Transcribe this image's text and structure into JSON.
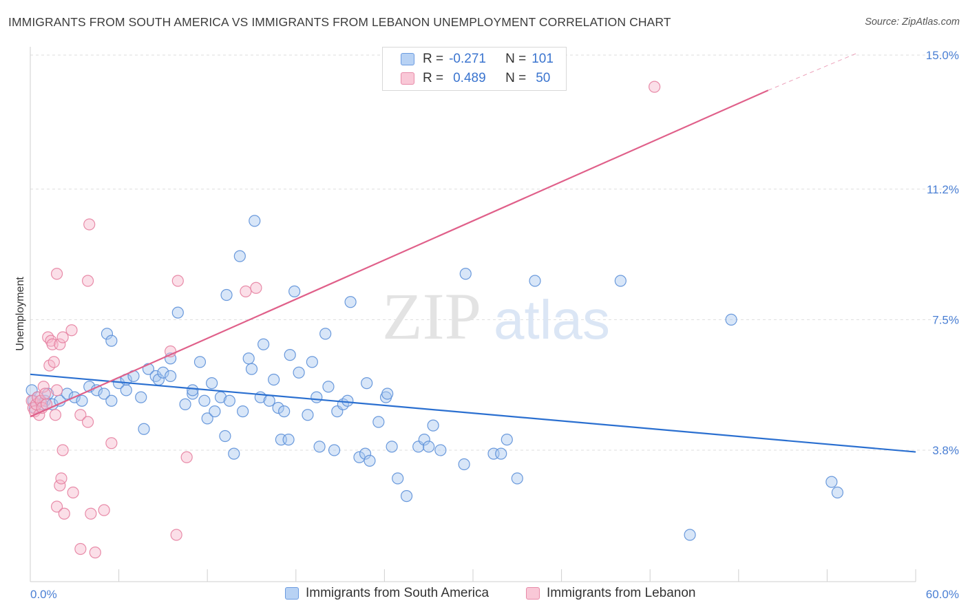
{
  "title": "IMMIGRANTS FROM SOUTH AMERICA VS IMMIGRANTS FROM LEBANON UNEMPLOYMENT CORRELATION CHART",
  "source": "Source: ZipAtlas.com",
  "watermark": {
    "zip": "ZIP",
    "atlas": "atlas"
  },
  "legend": {
    "rows": [
      {
        "r_label": "R =",
        "r_value": "-0.271",
        "n_label": "N =",
        "n_value": "101"
      },
      {
        "r_label": "R =",
        "r_value": "0.489",
        "n_label": "N =",
        "n_value": "50"
      }
    ]
  },
  "bottom_legend": {
    "south_america": "Immigrants from South America",
    "lebanon": "Immigrants from Lebanon"
  },
  "colors": {
    "south_america_fill": "#a8c8f0",
    "south_america_stroke": "#5b8fd8",
    "south_america_line": "#2a6fd0",
    "lebanon_fill": "#f6b8cb",
    "lebanon_stroke": "#e57fa0",
    "lebanon_line": "#e0608a",
    "tick_label": "#4a7fd4",
    "grid": "#dddddd"
  },
  "chart_data": {
    "type": "scatter",
    "title": "IMMIGRANTS FROM SOUTH AMERICA VS IMMIGRANTS FROM LEBANON UNEMPLOYMENT CORRELATION CHART",
    "xlabel": "",
    "ylabel": "Unemployment",
    "xlim": [
      0,
      60
    ],
    "ylim": [
      0,
      15.7
    ],
    "x_tick_labels": [
      "0.0%",
      "60.0%"
    ],
    "y_ticks": [
      3.8,
      7.5,
      11.2,
      15.0
    ],
    "y_tick_labels": [
      "3.8%",
      "7.5%",
      "11.2%",
      "15.0%"
    ],
    "grid": true,
    "series": [
      {
        "name": "Immigrants from South America",
        "trend": {
          "x0": 0,
          "y0": 5.95,
          "x1": 60,
          "y1": 3.75
        },
        "points": [
          [
            0.1,
            5.5
          ],
          [
            0.2,
            5.2
          ],
          [
            0.3,
            5.0
          ],
          [
            0.5,
            5.3
          ],
          [
            0.8,
            5.1
          ],
          [
            1.0,
            5.2
          ],
          [
            1.2,
            5.4
          ],
          [
            1.5,
            5.1
          ],
          [
            2.0,
            5.2
          ],
          [
            2.5,
            5.4
          ],
          [
            3.0,
            5.3
          ],
          [
            3.5,
            5.2
          ],
          [
            4.0,
            5.6
          ],
          [
            4.5,
            5.5
          ],
          [
            5.0,
            5.4
          ],
          [
            5.2,
            7.1
          ],
          [
            5.5,
            5.2
          ],
          [
            5.5,
            6.9
          ],
          [
            6.0,
            5.7
          ],
          [
            6.5,
            5.5
          ],
          [
            6.5,
            5.8
          ],
          [
            7.0,
            5.9
          ],
          [
            7.5,
            5.3
          ],
          [
            7.7,
            4.4
          ],
          [
            8.0,
            6.1
          ],
          [
            8.5,
            5.9
          ],
          [
            8.7,
            5.8
          ],
          [
            9.0,
            6.0
          ],
          [
            9.5,
            5.9
          ],
          [
            9.5,
            6.4
          ],
          [
            10.0,
            7.7
          ],
          [
            10.5,
            5.1
          ],
          [
            11.0,
            5.4
          ],
          [
            11.0,
            5.5
          ],
          [
            11.5,
            6.3
          ],
          [
            11.8,
            5.2
          ],
          [
            12.0,
            4.7
          ],
          [
            12.3,
            5.7
          ],
          [
            12.5,
            4.9
          ],
          [
            12.9,
            5.3
          ],
          [
            13.2,
            4.2
          ],
          [
            13.3,
            8.2
          ],
          [
            13.5,
            5.2
          ],
          [
            13.8,
            3.7
          ],
          [
            14.2,
            9.3
          ],
          [
            14.4,
            4.9
          ],
          [
            14.8,
            6.4
          ],
          [
            15.0,
            6.1
          ],
          [
            15.2,
            10.3
          ],
          [
            15.6,
            5.3
          ],
          [
            15.8,
            6.8
          ],
          [
            16.2,
            5.2
          ],
          [
            16.5,
            5.8
          ],
          [
            16.8,
            5.0
          ],
          [
            17.0,
            4.1
          ],
          [
            17.2,
            4.9
          ],
          [
            17.5,
            4.1
          ],
          [
            17.6,
            6.5
          ],
          [
            17.9,
            8.3
          ],
          [
            18.2,
            6.0
          ],
          [
            18.8,
            4.8
          ],
          [
            19.1,
            6.3
          ],
          [
            19.4,
            5.3
          ],
          [
            19.6,
            3.9
          ],
          [
            20.0,
            7.1
          ],
          [
            20.2,
            5.6
          ],
          [
            20.6,
            3.8
          ],
          [
            20.8,
            4.9
          ],
          [
            21.2,
            5.1
          ],
          [
            21.5,
            5.2
          ],
          [
            21.7,
            8.0
          ],
          [
            22.3,
            3.6
          ],
          [
            22.7,
            3.7
          ],
          [
            22.8,
            5.7
          ],
          [
            23.0,
            3.5
          ],
          [
            23.6,
            4.6
          ],
          [
            24.1,
            5.3
          ],
          [
            24.2,
            5.4
          ],
          [
            24.5,
            3.9
          ],
          [
            24.9,
            3.0
          ],
          [
            25.5,
            2.5
          ],
          [
            26.3,
            3.9
          ],
          [
            26.7,
            4.1
          ],
          [
            27.0,
            3.9
          ],
          [
            27.3,
            4.5
          ],
          [
            27.8,
            3.8
          ],
          [
            29.4,
            3.4
          ],
          [
            29.5,
            8.8
          ],
          [
            31.4,
            3.7
          ],
          [
            31.9,
            3.7
          ],
          [
            32.3,
            4.1
          ],
          [
            33.0,
            3.0
          ],
          [
            34.2,
            8.6
          ],
          [
            40.0,
            8.6
          ],
          [
            44.7,
            1.4
          ],
          [
            47.5,
            7.5
          ],
          [
            54.3,
            2.9
          ],
          [
            54.7,
            2.6
          ]
        ]
      },
      {
        "name": "Immigrants from Lebanon",
        "trend": {
          "x0": 0,
          "y0": 4.75,
          "x1": 50,
          "y1": 14.0,
          "dash_to_x": 56,
          "dash_to_y": 15.05
        },
        "points": [
          [
            0.1,
            5.2
          ],
          [
            0.2,
            5.0
          ],
          [
            0.3,
            4.9
          ],
          [
            0.4,
            5.1
          ],
          [
            0.5,
            5.3
          ],
          [
            0.6,
            4.8
          ],
          [
            0.7,
            5.2
          ],
          [
            0.8,
            5.0
          ],
          [
            0.9,
            5.6
          ],
          [
            1.0,
            5.4
          ],
          [
            1.1,
            5.1
          ],
          [
            1.2,
            7.0
          ],
          [
            1.3,
            6.2
          ],
          [
            1.4,
            6.9
          ],
          [
            1.5,
            6.8
          ],
          [
            1.6,
            6.3
          ],
          [
            1.7,
            4.8
          ],
          [
            1.8,
            5.5
          ],
          [
            1.8,
            2.2
          ],
          [
            1.8,
            8.8
          ],
          [
            2.0,
            6.8
          ],
          [
            2.0,
            2.8
          ],
          [
            2.1,
            3.0
          ],
          [
            2.2,
            7.0
          ],
          [
            2.2,
            3.8
          ],
          [
            2.3,
            2.0
          ],
          [
            2.8,
            7.2
          ],
          [
            2.9,
            2.6
          ],
          [
            3.4,
            4.8
          ],
          [
            3.4,
            1.0
          ],
          [
            3.9,
            4.6
          ],
          [
            3.9,
            8.6
          ],
          [
            4.0,
            10.2
          ],
          [
            4.1,
            2.0
          ],
          [
            4.4,
            0.9
          ],
          [
            5.0,
            2.1
          ],
          [
            5.5,
            4.0
          ],
          [
            9.5,
            6.6
          ],
          [
            9.9,
            1.4
          ],
          [
            10.0,
            8.6
          ],
          [
            10.6,
            3.6
          ],
          [
            14.6,
            8.3
          ],
          [
            15.3,
            8.4
          ],
          [
            42.3,
            14.1
          ]
        ]
      }
    ]
  }
}
